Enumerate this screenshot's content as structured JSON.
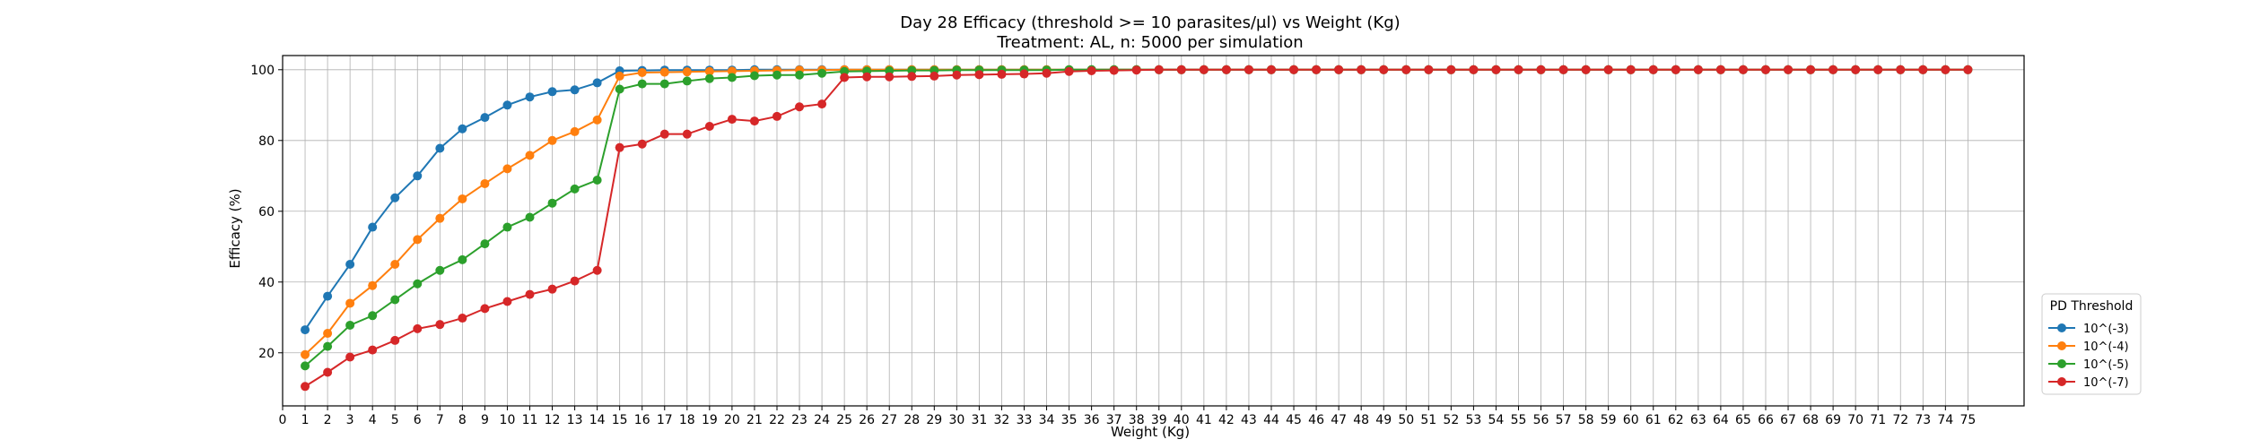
{
  "chart_data": {
    "type": "line",
    "title": "Day 28 Efficacy (threshold >= 10 parasites/μl) vs Weight (Kg)",
    "subtitle": "Treatment: AL, n: 5000 per simulation",
    "xlabel": "Weight (Kg)",
    "ylabel": "Efficacy (%)",
    "xlim": [
      0,
      77.5
    ],
    "ylim": [
      5,
      104
    ],
    "xticks": [
      0,
      1,
      2,
      3,
      4,
      5,
      6,
      7,
      8,
      9,
      10,
      11,
      12,
      13,
      14,
      15,
      16,
      17,
      18,
      19,
      20,
      21,
      22,
      23,
      24,
      25,
      26,
      27,
      28,
      29,
      30,
      31,
      32,
      33,
      34,
      35,
      36,
      37,
      38,
      39,
      40,
      41,
      42,
      43,
      44,
      45,
      46,
      47,
      48,
      49,
      50,
      51,
      52,
      53,
      54,
      55,
      56,
      57,
      58,
      59,
      60,
      61,
      62,
      63,
      64,
      65,
      66,
      67,
      68,
      69,
      70,
      71,
      72,
      73,
      74,
      75
    ],
    "yticks": [
      20,
      40,
      60,
      80,
      100
    ],
    "grid": true,
    "legend_title": "PD Threshold",
    "legend_position": "lower-right outside",
    "x": [
      1,
      2,
      3,
      4,
      5,
      6,
      7,
      8,
      9,
      10,
      11,
      12,
      13,
      14,
      15,
      16,
      17,
      18,
      19,
      20,
      21,
      22,
      23,
      24,
      25,
      26,
      27,
      28,
      29,
      30,
      31,
      32,
      33,
      34,
      35,
      36,
      37,
      38,
      39,
      40,
      41,
      42,
      43,
      44,
      45,
      46,
      47,
      48,
      49,
      50,
      51,
      52,
      53,
      54,
      55,
      56,
      57,
      58,
      59,
      60,
      61,
      62,
      63,
      64,
      65,
      66,
      67,
      68,
      69,
      70,
      71,
      72,
      73,
      74,
      75
    ],
    "series": [
      {
        "name": "10^(-3)",
        "color": "#1f77b4",
        "values": [
          26.5,
          36,
          45,
          55.5,
          63.8,
          70,
          77.8,
          83.3,
          86.5,
          90,
          92.3,
          93.8,
          94.3,
          96.3,
          99.7,
          99.8,
          99.9,
          99.9,
          99.9,
          99.9,
          100,
          100,
          100,
          100,
          100,
          100,
          100,
          100,
          100,
          100,
          100,
          100,
          100,
          100,
          100,
          100,
          100,
          100,
          100,
          100,
          100,
          100,
          100,
          100,
          100,
          100,
          100,
          100,
          100,
          100,
          100,
          100,
          100,
          100,
          100,
          100,
          100,
          100,
          100,
          100,
          100,
          100,
          100,
          100,
          100,
          100,
          100,
          100,
          100,
          100,
          100,
          100,
          100,
          100,
          100
        ]
      },
      {
        "name": "10^(-4)",
        "color": "#ff7f0e",
        "values": [
          19.5,
          25.5,
          34,
          39,
          45,
          52,
          58,
          63.5,
          67.8,
          72,
          75.8,
          80,
          82.5,
          85.8,
          98.2,
          99.2,
          99.3,
          99.4,
          99.5,
          99.6,
          99.7,
          99.8,
          99.9,
          99.9,
          100,
          100,
          100,
          100,
          100,
          100,
          100,
          100,
          100,
          100,
          100,
          100,
          100,
          100,
          100,
          100,
          100,
          100,
          100,
          100,
          100,
          100,
          100,
          100,
          100,
          100,
          100,
          100,
          100,
          100,
          100,
          100,
          100,
          100,
          100,
          100,
          100,
          100,
          100,
          100,
          100,
          100,
          100,
          100,
          100,
          100,
          100,
          100,
          100,
          100,
          100
        ]
      },
      {
        "name": "10^(-5)",
        "color": "#2ca02c",
        "values": [
          16.3,
          21.8,
          27.8,
          30.5,
          35,
          39.5,
          43.3,
          46.3,
          50.8,
          55.5,
          58.3,
          62.3,
          66.3,
          68.8,
          94.5,
          96,
          96,
          96.8,
          97.5,
          97.8,
          98.3,
          98.5,
          98.5,
          99,
          99.5,
          99.6,
          99.7,
          99.8,
          99.8,
          99.9,
          99.9,
          99.9,
          99.9,
          99.9,
          100,
          100,
          100,
          100,
          100,
          100,
          100,
          100,
          100,
          100,
          100,
          100,
          100,
          100,
          100,
          100,
          100,
          100,
          100,
          100,
          100,
          100,
          100,
          100,
          100,
          100,
          100,
          100,
          100,
          100,
          100,
          100,
          100,
          100,
          100,
          100,
          100,
          100,
          100,
          100,
          100
        ]
      },
      {
        "name": "10^(-7)",
        "color": "#d62728",
        "values": [
          10.5,
          14.5,
          18.8,
          20.8,
          23.5,
          26.8,
          28,
          29.8,
          32.5,
          34.5,
          36.5,
          38,
          40.3,
          43.3,
          78,
          79,
          81.8,
          81.8,
          84,
          86,
          85.5,
          86.8,
          89.5,
          90.3,
          97.8,
          98,
          98,
          98.1,
          98.2,
          98.5,
          98.6,
          98.7,
          98.8,
          99,
          99.5,
          99.7,
          99.8,
          99.9,
          100,
          100,
          100,
          100,
          100,
          100,
          100,
          100,
          100,
          100,
          100,
          100,
          100,
          100,
          100,
          100,
          100,
          100,
          100,
          100,
          100,
          100,
          100,
          100,
          100,
          100,
          100,
          100,
          100,
          100,
          100,
          100,
          100,
          100,
          100,
          100,
          100
        ]
      }
    ]
  }
}
